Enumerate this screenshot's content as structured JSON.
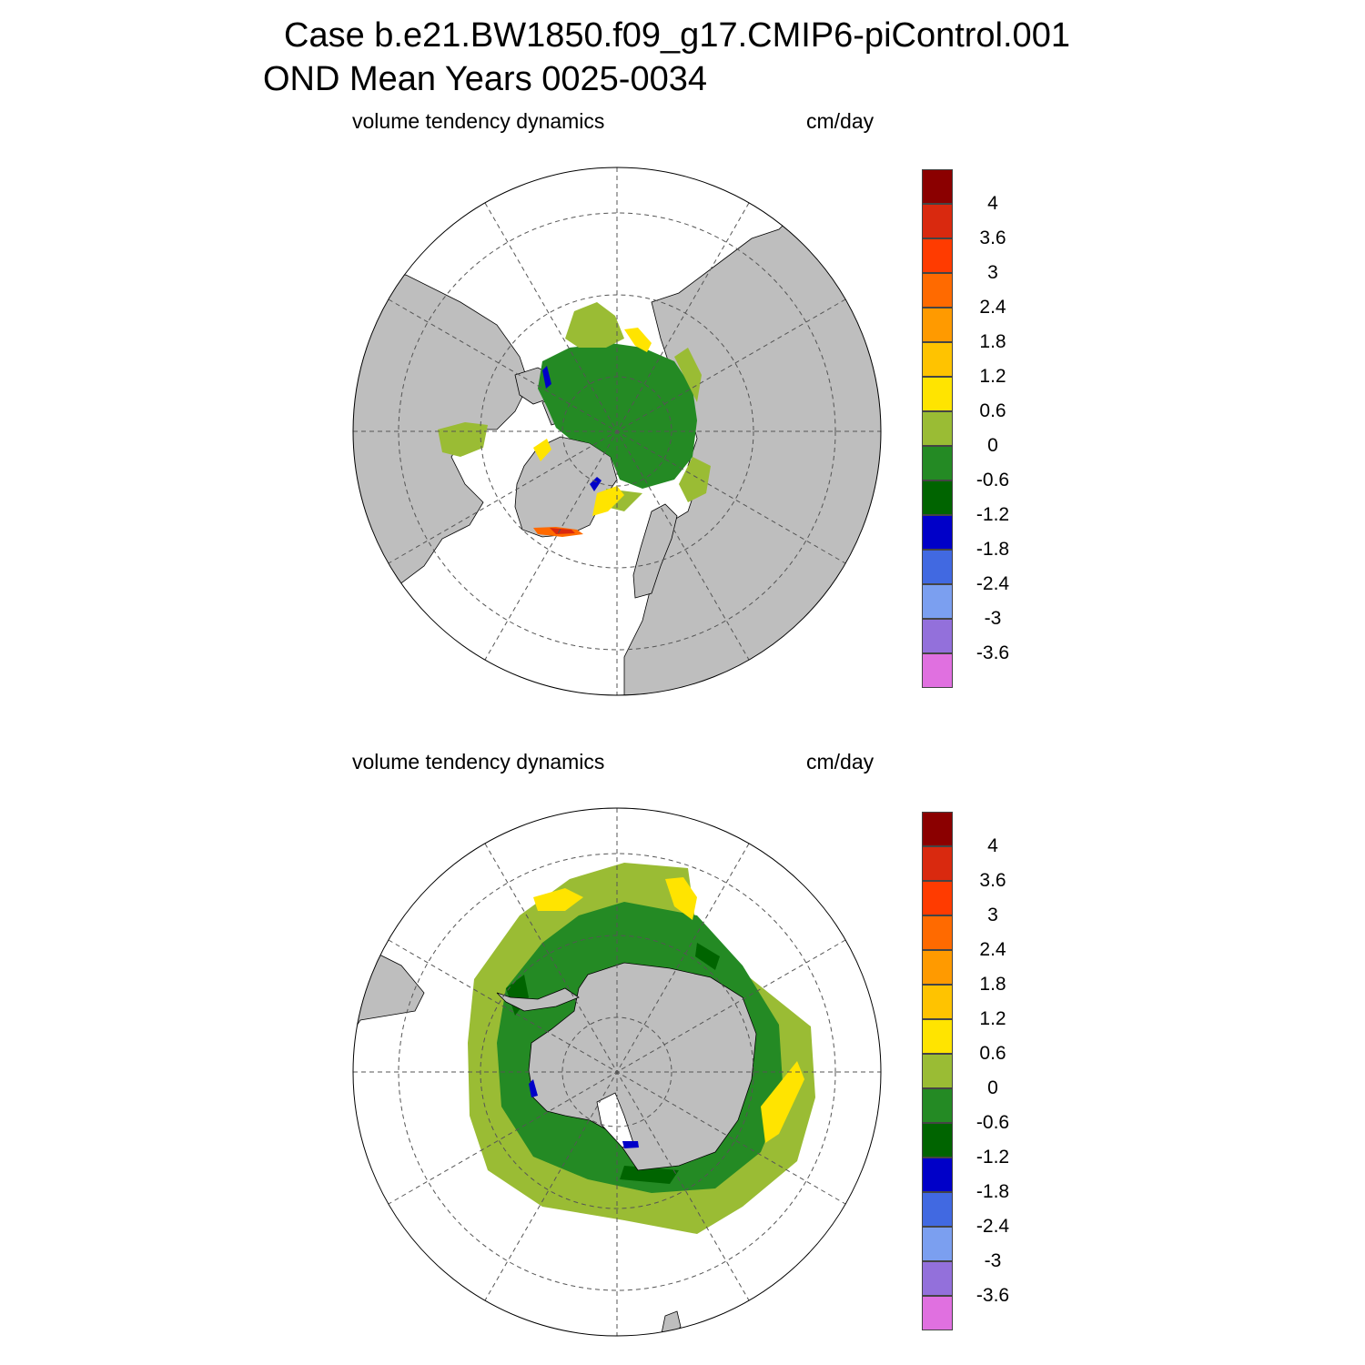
{
  "title": {
    "line1": "Case b.e21.BW1850.f09_g17.CMIP6-piControl.001",
    "line2": "OND Mean   Years 0025-0034"
  },
  "panels": [
    {
      "id": "north",
      "left_label": "volume tendency dynamics",
      "right_label": "cm/day"
    },
    {
      "id": "south",
      "left_label": "volume tendency dynamics",
      "right_label": "cm/day"
    }
  ],
  "colorbar": {
    "labels": [
      "4",
      "3.6",
      "3",
      "2.4",
      "1.8",
      "1.2",
      "0.6",
      "0",
      "-0.6",
      "-1.2",
      "-1.8",
      "-2.4",
      "-3",
      "-3.6"
    ],
    "colors": [
      "#8b0000",
      "#d9290f",
      "#ff3b00",
      "#ff6a00",
      "#ff9a00",
      "#ffc300",
      "#ffe400",
      "#9abc34",
      "#248a24",
      "#006400",
      "#0000c8",
      "#4169e1",
      "#7b9ff0",
      "#9370db",
      "#e070e0"
    ]
  },
  "map_colors": {
    "land": "#bebebe",
    "ocean": "#ffffff",
    "grid": "#555555"
  }
}
